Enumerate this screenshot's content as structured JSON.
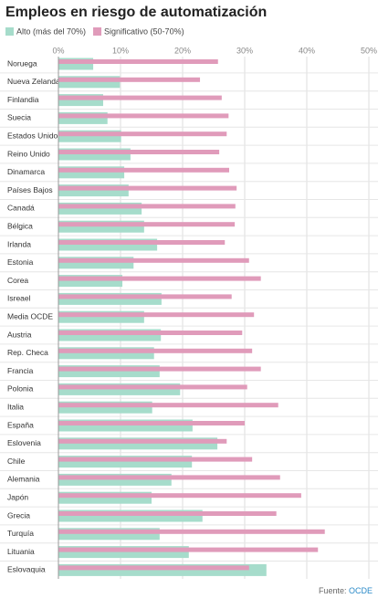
{
  "chart_data": {
    "type": "barh",
    "title": "Empleos en riesgo de automatización",
    "categories": [
      "Noruega",
      "Nueva Zelanda",
      "Finlandia",
      "Suecia",
      "Estados Unidos",
      "Reino Unido",
      "Dinamarca",
      "Países Bajos",
      "Canadá",
      "Bélgica",
      "Irlanda",
      "Estonia",
      "Corea",
      "Isreael",
      "Media OCDE",
      "Austria",
      "Rep. Checa",
      "Francia",
      "Polonia",
      "Italia",
      "España",
      "Eslovenia",
      "Chile",
      "Alemania",
      "Japón",
      "Grecia",
      "Turquía",
      "Lituania",
      "Eslovaquia"
    ],
    "series": [
      {
        "name": "Alto (más del 70%)",
        "color": "#a6dccb",
        "values": [
          5.6,
          9.9,
          7.2,
          7.9,
          10.1,
          11.6,
          10.6,
          11.3,
          13.4,
          13.8,
          15.9,
          12.1,
          10.3,
          16.6,
          13.8,
          16.5,
          15.4,
          16.3,
          19.6,
          15.1,
          21.6,
          25.6,
          21.5,
          18.2,
          15.0,
          23.2,
          16.3,
          21.0,
          33.5
        ]
      },
      {
        "name": "Significativo (50-70%)",
        "color": "#e09bba",
        "values": [
          25.7,
          22.8,
          26.3,
          27.4,
          27.1,
          25.9,
          27.5,
          28.7,
          28.5,
          28.4,
          26.8,
          30.7,
          32.6,
          27.9,
          31.5,
          29.6,
          31.2,
          32.6,
          30.4,
          35.4,
          30.0,
          27.1,
          31.2,
          35.7,
          39.1,
          35.1,
          42.9,
          41.8,
          30.7
        ]
      }
    ],
    "xlim": [
      0,
      50
    ],
    "xticks": [
      {
        "value": 0,
        "label": "0%"
      },
      {
        "value": 10,
        "label": "10%"
      },
      {
        "value": 20,
        "label": "20%"
      },
      {
        "value": 30,
        "label": "30%"
      },
      {
        "value": 40,
        "label": "40%"
      },
      {
        "value": 50,
        "label": "50%"
      }
    ],
    "grid": true,
    "source": {
      "prefix": "Fuente:",
      "link": "OCDE"
    }
  }
}
